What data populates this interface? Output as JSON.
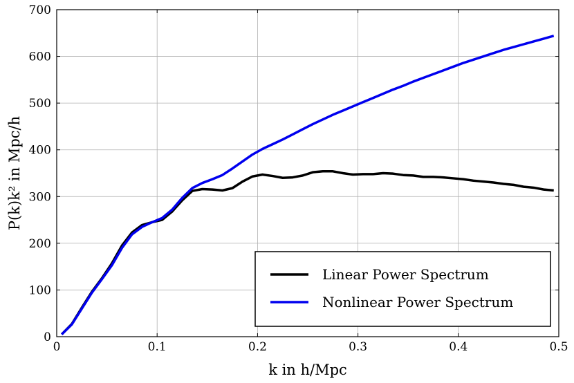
{
  "chart_data": {
    "type": "line",
    "title": "",
    "xlabel": "k in h/Mpc",
    "ylabel": "P(k)k² in Mpc/h",
    "xlim": [
      0,
      0.5
    ],
    "ylim": [
      0,
      700
    ],
    "xticks": [
      0,
      0.1,
      0.2,
      0.3,
      0.4,
      0.5
    ],
    "xtick_labels": [
      "0",
      "0.1",
      "0.2",
      "0.3",
      "0.4",
      "0.5"
    ],
    "yticks": [
      0,
      100,
      200,
      300,
      400,
      500,
      600,
      700
    ],
    "ytick_labels": [
      "0",
      "100",
      "200",
      "300",
      "400",
      "500",
      "600",
      "700"
    ],
    "grid": true,
    "legend_position": "lower-right",
    "series": [
      {
        "name": "Linear Power Spectrum",
        "color": "#000000",
        "x": [
          0.005,
          0.015,
          0.025,
          0.035,
          0.045,
          0.055,
          0.065,
          0.075,
          0.085,
          0.095,
          0.105,
          0.115,
          0.125,
          0.135,
          0.145,
          0.155,
          0.165,
          0.175,
          0.185,
          0.195,
          0.205,
          0.215,
          0.225,
          0.235,
          0.245,
          0.255,
          0.265,
          0.275,
          0.285,
          0.295,
          0.305,
          0.315,
          0.325,
          0.335,
          0.345,
          0.355,
          0.365,
          0.375,
          0.385,
          0.395,
          0.405,
          0.415,
          0.425,
          0.435,
          0.445,
          0.455,
          0.465,
          0.475,
          0.485,
          0.495
        ],
        "values": [
          5,
          27,
          62,
          96,
          125,
          157,
          195,
          223,
          239,
          245,
          250,
          268,
          292,
          312,
          316,
          315,
          313,
          318,
          332,
          343,
          347,
          344,
          340,
          341,
          345,
          352,
          354,
          354,
          350,
          347,
          348,
          348,
          350,
          349,
          346,
          345,
          342,
          342,
          341,
          339,
          337,
          334,
          332,
          330,
          327,
          325,
          321,
          319,
          315,
          313
        ]
      },
      {
        "name": "Nonlinear Power Spectrum",
        "color": "#0000ee",
        "x": [
          0.005,
          0.015,
          0.025,
          0.035,
          0.045,
          0.055,
          0.065,
          0.075,
          0.085,
          0.095,
          0.105,
          0.115,
          0.125,
          0.135,
          0.145,
          0.155,
          0.165,
          0.175,
          0.185,
          0.195,
          0.205,
          0.215,
          0.225,
          0.235,
          0.245,
          0.255,
          0.265,
          0.275,
          0.285,
          0.295,
          0.305,
          0.315,
          0.325,
          0.335,
          0.345,
          0.355,
          0.365,
          0.375,
          0.385,
          0.395,
          0.405,
          0.415,
          0.425,
          0.435,
          0.445,
          0.455,
          0.465,
          0.475,
          0.485,
          0.495
        ],
        "values": [
          5,
          26,
          60,
          94,
          123,
          153,
          190,
          219,
          235,
          245,
          254,
          272,
          297,
          318,
          329,
          337,
          346,
          360,
          375,
          390,
          402,
          412,
          422,
          433,
          444,
          455,
          465,
          475,
          484,
          493,
          502,
          511,
          520,
          529,
          537,
          546,
          554,
          562,
          570,
          578,
          586,
          593,
          600,
          607,
          614,
          620,
          626,
          632,
          638,
          644
        ]
      }
    ]
  }
}
